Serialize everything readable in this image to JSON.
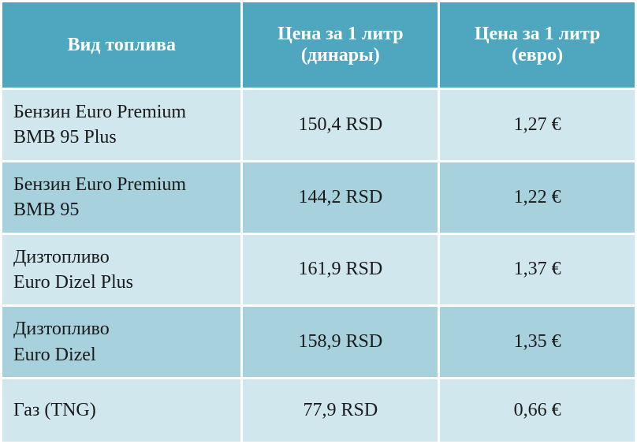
{
  "table": {
    "columns": [
      "Вид топлива",
      "Цена за 1 литр (динары)",
      "Цена за 1 литр (евро)"
    ],
    "rows": [
      {
        "fuel_line1": "Бензин Euro Premium",
        "fuel_line2": "BMB 95 Plus",
        "price_rsd": "150,4 RSD",
        "price_eur": "1,27 €"
      },
      {
        "fuel_line1": "Бензин Euro Premium",
        "fuel_line2": "BMB 95",
        "price_rsd": "144,2 RSD",
        "price_eur": "1,22 €"
      },
      {
        "fuel_line1": "Дизтопливо",
        "fuel_line2": "Euro Dizel Plus",
        "price_rsd": "161,9 RSD",
        "price_eur": "1,37 €"
      },
      {
        "fuel_line1": "Дизтопливо",
        "fuel_line2": "Euro Dizel",
        "price_rsd": "158,9 RSD",
        "price_eur": "1,35 €"
      },
      {
        "fuel_line1": "Газ (TNG)",
        "fuel_line2": "",
        "price_rsd": "77,9 RSD",
        "price_eur": "0,66 €"
      }
    ],
    "styling": {
      "type": "table",
      "header_bg": "#4ea6bf",
      "header_text_color": "#ffffff",
      "row_odd_bg": "#d0e7ee",
      "row_even_bg": "#a7d1dd",
      "cell_text_color": "#1a1a1a",
      "header_fontsize": 24,
      "cell_fontsize": 24,
      "border_spacing": 3,
      "font_family": "serif",
      "col_widths_pct": [
        38,
        31,
        31
      ]
    }
  }
}
